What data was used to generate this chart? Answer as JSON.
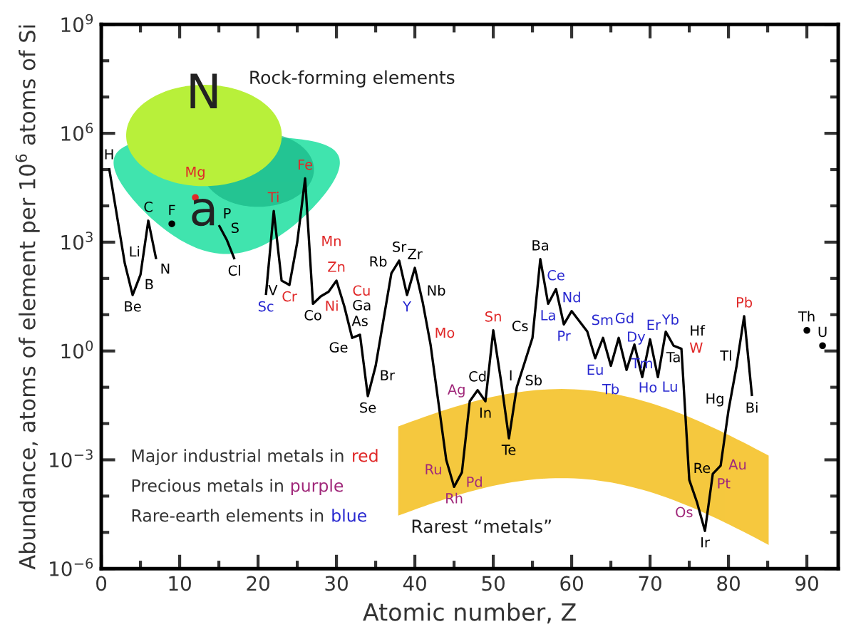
{
  "chart_data": {
    "type": "line",
    "xlabel": "Atomic number, Z",
    "ylabel": "Abundance, atoms of element per 10$^{6}$ atoms of Si",
    "log": "y",
    "grid": false,
    "xlim": [
      0,
      94
    ],
    "xticks": [
      0,
      10,
      20,
      30,
      40,
      50,
      60,
      70,
      80,
      90
    ],
    "ylim": [
      1e-06,
      1000000000.0
    ],
    "yticks": [
      {
        "value": 1e-06,
        "label": "10$^{−6}$"
      },
      {
        "value": 0.001,
        "label": "10$^{−3}$"
      },
      {
        "value": 1,
        "label": "10$^{0}$"
      },
      {
        "value": 1000.0,
        "label": "10$^{3}$"
      },
      {
        "value": 1000000.0,
        "label": "10$^{6}$"
      },
      {
        "value": 1000000000.0,
        "label": "10$^{9}$"
      }
    ],
    "series": [
      {
        "color": "#000000",
        "marker": "none",
        "x": [
          1,
          3,
          4,
          5,
          6,
          7,
          8,
          9,
          11,
          12,
          13,
          14,
          15,
          16,
          17,
          19,
          20,
          21,
          22,
          23,
          24,
          25,
          26,
          27,
          28,
          29,
          30,
          31,
          32,
          33,
          34,
          35,
          37,
          38,
          39,
          40,
          41,
          42,
          44,
          45,
          46,
          47,
          48,
          49,
          50,
          51,
          52,
          53,
          55,
          56,
          57,
          58,
          59,
          60,
          62,
          63,
          64,
          65,
          66,
          67,
          68,
          69,
          70,
          71,
          72,
          73,
          74,
          75,
          76,
          77,
          78,
          79,
          80,
          81,
          82,
          83
        ],
        "values": [
          110000.0,
          260,
          35,
          126,
          3900,
          340,
          null,
          3200,
          null,
          17000,
          null,
          null,
          2950,
          1170,
          340,
          null,
          null,
          35,
          7200,
          87,
          66,
          1000,
          57000,
          20,
          32,
          43,
          87,
          17,
          2.3,
          2.8,
          0.057,
          0.39,
          138,
          310,
          35,
          195,
          22,
          1.5,
          0.001,
          0.00018,
          0.00045,
          0.041,
          0.083,
          0.041,
          3.7,
          0.145,
          0.0039,
          0.1,
          2.3,
          340,
          20,
          51,
          5.4,
          12.6,
          3.4,
          0.63,
          2.3,
          0.39,
          2.3,
          0.3,
          1.5,
          0.19,
          2.1,
          0.19,
          3.4,
          1.4,
          1.15,
          0.00028,
          6.6e-05,
          1.1e-05,
          0.00041,
          0.00069,
          0.023,
          0.35,
          9.1,
          0.057
        ],
        "value_labels": [
          "H",
          "Li",
          "Be",
          "B",
          "C",
          "N",
          null,
          "F",
          null,
          "Mg",
          null,
          null,
          "P",
          "S",
          "Cl",
          null,
          null,
          "Sc",
          "Ti",
          "V",
          "Cr",
          "Mn",
          "Fe",
          "Co",
          "Ni",
          "Cu",
          "Zn",
          "Ga",
          "Ge",
          "As",
          "Se",
          "Br",
          "Rb",
          "Sr",
          "Y",
          "Zr",
          "Nb",
          "Mo",
          "Ru",
          "Rh",
          "Pd",
          "Ag",
          "Cd",
          "In",
          "Sn",
          "Sb",
          "Te",
          "I",
          "Cs",
          "Ba",
          "La",
          "Ce",
          "Pr",
          "Nd",
          "Sm",
          "Eu",
          "Gd",
          "Tb",
          "Dy",
          "Ho",
          "Er",
          "Tm",
          "Yb",
          "Lu",
          "Hf",
          "Ta",
          "W",
          "Re",
          "Os",
          "Ir",
          "Pt",
          "Au",
          "Hg",
          "Tl",
          "Pb",
          "Bi"
        ],
        "colors": [
          "#000000",
          "#000000",
          "#000000",
          "#000000",
          "#000000",
          "#000000",
          "#000000",
          "#000000",
          "#000000",
          "#e02828",
          "#000000",
          "#000000",
          "#000000",
          "#000000",
          "#000000",
          "#000000",
          "#000000",
          "#2828d0",
          "#e02828",
          "#000000",
          "#e02828",
          "#e02828",
          "#e02828",
          "#000000",
          "#e02828",
          "#e02828",
          "#e02828",
          "#000000",
          "#000000",
          "#000000",
          "#000000",
          "#000000",
          "#000000",
          "#000000",
          "#2828d0",
          "#000000",
          "#000000",
          "#e02828",
          "#a0287a",
          "#a0287a",
          "#a0287a",
          "#a0287a",
          "#000000",
          "#000000",
          "#e02828",
          "#000000",
          "#000000",
          "#000000",
          "#000000",
          "#000000",
          "#2828d0",
          "#2828d0",
          "#2828d0",
          "#2828d0",
          "#2828d0",
          "#2828d0",
          "#2828d0",
          "#2828d0",
          "#2828d0",
          "#2828d0",
          "#2828d0",
          "#2828d0",
          "#2828d0",
          "#2828d0",
          "#000000",
          "#000000",
          "#e02828",
          "#000000",
          "#a0287a",
          "#000000",
          "#a0287a",
          "#a0287a",
          "#000000",
          "#000000",
          "#e02828",
          "#000000"
        ]
      },
      {
        "type": "scatter",
        "color": "#000000",
        "marker": "circle",
        "x": [
          90,
          92
        ],
        "values": [
          3.7,
          1.4
        ],
        "value_labels": [
          "Th",
          "U"
        ]
      }
    ],
    "annotations": [
      "Rock-forming elements",
      "Rarest “metals”",
      "Major industrial metals in red",
      "Precious metals in purple",
      "Rare-earth elements in blue",
      "N",
      "a"
    ]
  }
}
